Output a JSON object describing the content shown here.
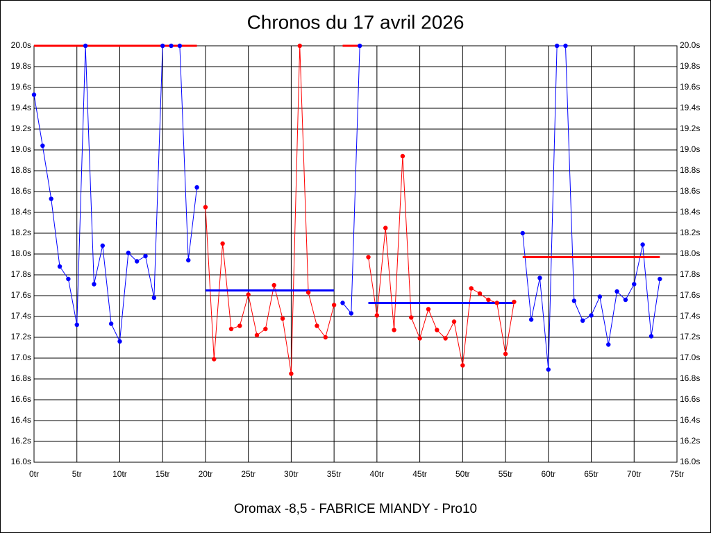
{
  "chart_data": {
    "type": "line",
    "title": "Chronos du 17 avril 2026",
    "x_label": "Oromax -8,5 - FABRICE MIANDY - Pro10",
    "xlim": [
      0,
      75
    ],
    "ylim": [
      16.0,
      20.0
    ],
    "grid": true,
    "xticks": [
      {
        "value": 0,
        "label": "0tr"
      },
      {
        "value": 5,
        "label": "5tr"
      },
      {
        "value": 10,
        "label": "10tr"
      },
      {
        "value": 15,
        "label": "15tr"
      },
      {
        "value": 20,
        "label": "20tr"
      },
      {
        "value": 25,
        "label": "25tr"
      },
      {
        "value": 30,
        "label": "30tr"
      },
      {
        "value": 35,
        "label": "35tr"
      },
      {
        "value": 40,
        "label": "40tr"
      },
      {
        "value": 45,
        "label": "45tr"
      },
      {
        "value": 50,
        "label": "50tr"
      },
      {
        "value": 55,
        "label": "55tr"
      },
      {
        "value": 60,
        "label": "60tr"
      },
      {
        "value": 65,
        "label": "65tr"
      },
      {
        "value": 70,
        "label": "70tr"
      },
      {
        "value": 75,
        "label": "75tr"
      }
    ],
    "yticks": [
      {
        "value": 16.0,
        "label": "16.0s"
      },
      {
        "value": 16.2,
        "label": "16.2s"
      },
      {
        "value": 16.4,
        "label": "16.4s"
      },
      {
        "value": 16.6,
        "label": "16.6s"
      },
      {
        "value": 16.8,
        "label": "16.8s"
      },
      {
        "value": 17.0,
        "label": "17.0s"
      },
      {
        "value": 17.2,
        "label": "17.2s"
      },
      {
        "value": 17.4,
        "label": "17.4s"
      },
      {
        "value": 17.6,
        "label": "17.6s"
      },
      {
        "value": 17.8,
        "label": "17.8s"
      },
      {
        "value": 18.0,
        "label": "18.0s"
      },
      {
        "value": 18.2,
        "label": "18.2s"
      },
      {
        "value": 18.4,
        "label": "18.4s"
      },
      {
        "value": 18.6,
        "label": "18.6s"
      },
      {
        "value": 18.8,
        "label": "18.8s"
      },
      {
        "value": 19.0,
        "label": "19.0s"
      },
      {
        "value": 19.2,
        "label": "19.2s"
      },
      {
        "value": 19.4,
        "label": "19.4s"
      },
      {
        "value": 19.6,
        "label": "19.6s"
      },
      {
        "value": 19.8,
        "label": "19.8s"
      },
      {
        "value": 20.0,
        "label": "20.0s"
      }
    ],
    "series": [
      {
        "color": "#0000ff",
        "x": [
          0,
          1,
          2,
          3,
          4,
          5,
          6,
          7,
          8,
          9,
          10,
          11,
          12,
          13,
          14,
          15,
          16,
          17,
          18,
          19
        ],
        "values": [
          19.53,
          19.04,
          18.53,
          17.88,
          17.76,
          17.32,
          20.0,
          17.71,
          18.08,
          17.33,
          17.16,
          18.01,
          17.93,
          17.98,
          17.58,
          20.0,
          20.0,
          20.0,
          17.94,
          18.64
        ]
      },
      {
        "color": "#ff0000",
        "x": [
          20,
          21,
          22,
          23,
          24,
          25,
          26,
          27,
          28,
          29,
          30,
          31,
          32,
          33,
          34,
          35
        ],
        "values": [
          18.45,
          16.99,
          18.1,
          17.28,
          17.31,
          17.61,
          17.22,
          17.28,
          17.7,
          17.38,
          16.85,
          20.0,
          17.63,
          17.31,
          17.2,
          17.51
        ]
      },
      {
        "color": "#0000ff",
        "x": [
          36,
          37,
          38
        ],
        "values": [
          17.53,
          17.43,
          20.0
        ]
      },
      {
        "color": "#ff0000",
        "x": [
          39,
          40,
          41,
          42,
          43,
          44,
          45,
          46,
          47,
          48,
          49,
          50,
          51,
          52,
          53,
          54,
          55,
          56
        ],
        "values": [
          17.97,
          17.41,
          18.25,
          17.27,
          18.94,
          17.39,
          17.19,
          17.47,
          17.27,
          17.19,
          17.35,
          16.93,
          17.67,
          17.62,
          17.56,
          17.53,
          17.04,
          17.54
        ]
      },
      {
        "color": "#0000ff",
        "x": [
          57,
          58,
          59,
          60,
          61,
          62,
          63,
          64,
          65,
          66,
          67,
          68,
          69,
          70,
          71,
          72,
          73
        ],
        "values": [
          18.2,
          17.37,
          17.77,
          16.89,
          20.0,
          20.0,
          17.55,
          17.36,
          17.41,
          17.59,
          17.13,
          17.64,
          17.56,
          17.71,
          18.09,
          17.21,
          17.76
        ]
      }
    ],
    "averages": [
      {
        "color": "#ff0000",
        "start": 0,
        "end": 19,
        "value": 20.0
      },
      {
        "color": "#0000ff",
        "start": 20,
        "end": 35,
        "value": 17.65
      },
      {
        "color": "#ff0000",
        "start": 36,
        "end": 38,
        "value": 20.0
      },
      {
        "color": "#0000ff",
        "start": 39,
        "end": 56,
        "value": 17.53
      },
      {
        "color": "#ff0000",
        "start": 57,
        "end": 73,
        "value": 17.97
      }
    ]
  }
}
